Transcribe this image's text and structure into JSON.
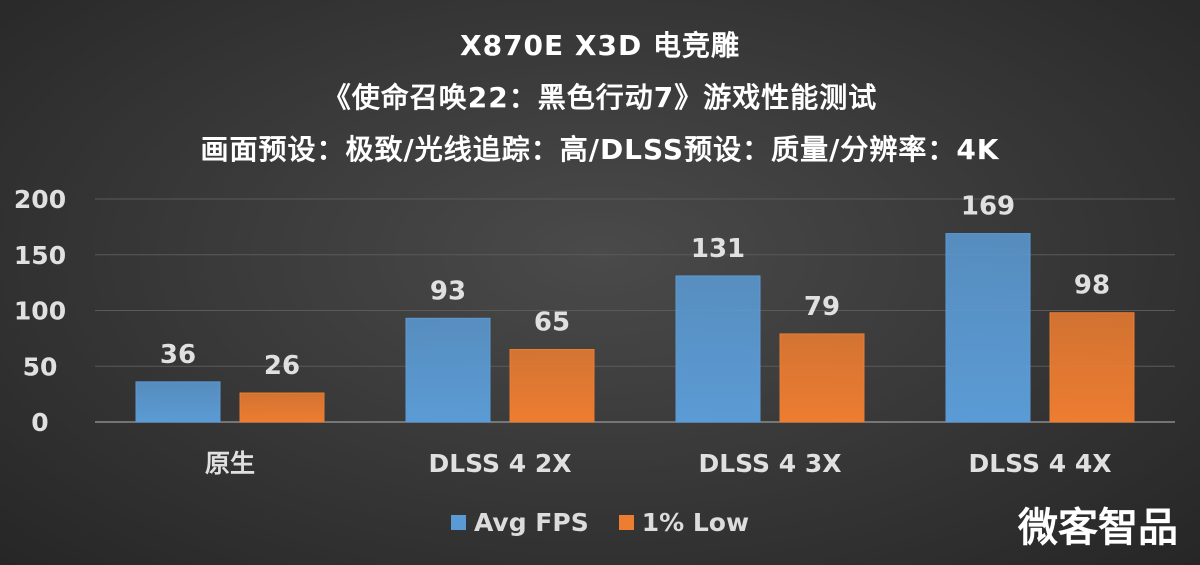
{
  "title_lines": [
    "X870E X3D 电竞雕",
    "《使命召唤22：黑色行动7》游戏性能测试",
    "画面预设：极致/光线追踪：高/DLSS预设：质量/分辨率：4K"
  ],
  "watermark": "微客智品",
  "colors": {
    "avg_fps": "#5b9bd5",
    "low_1pct": "#ed7d31",
    "text": "#ffffff",
    "axis_text": "#e0e0e0",
    "grid": "#5a5a5a"
  },
  "chart_data": {
    "type": "bar",
    "title": "X870E X3D 电竞雕",
    "categories": [
      "原生",
      "DLSS 4 2X",
      "DLSS 4 3X",
      "DLSS 4 4X"
    ],
    "series": [
      {
        "name": "Avg FPS",
        "values": [
          36,
          93,
          131,
          169
        ]
      },
      {
        "name": "1% Low",
        "values": [
          26,
          65,
          79,
          98
        ]
      }
    ],
    "ylim": [
      0,
      200
    ],
    "yticks": [
      0,
      50,
      100,
      150,
      200
    ],
    "grid": true,
    "legend": "bottom",
    "data_labels": true
  }
}
